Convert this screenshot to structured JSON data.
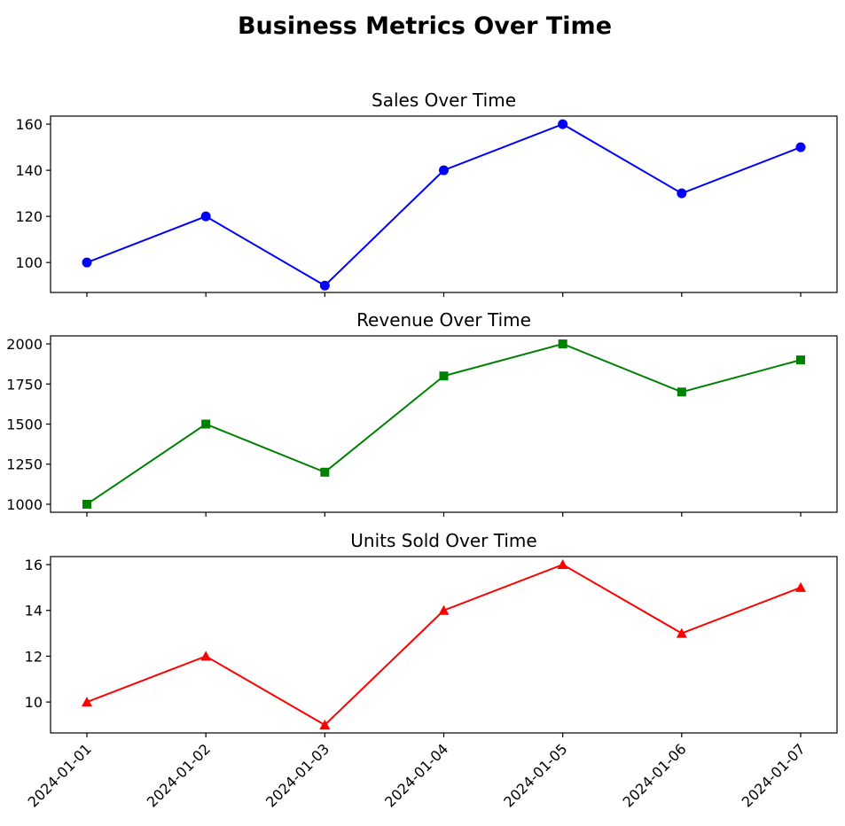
{
  "figure_title": "Business Metrics Over Time",
  "chart_data": [
    {
      "type": "line",
      "title": "Sales Over Time",
      "x": [
        "2024-01-01",
        "2024-01-02",
        "2024-01-03",
        "2024-01-04",
        "2024-01-05",
        "2024-01-06",
        "2024-01-07"
      ],
      "series": [
        {
          "values": [
            100,
            120,
            90,
            140,
            160,
            130,
            150
          ],
          "color": "#0000ff",
          "marker": "circle"
        }
      ],
      "ylim": [
        87,
        163.5
      ],
      "yticks": [
        100,
        120,
        140,
        160
      ],
      "xlabel": "",
      "ylabel": "",
      "grid": false,
      "show_xtick_labels": false
    },
    {
      "type": "line",
      "title": "Revenue Over Time",
      "x": [
        "2024-01-01",
        "2024-01-02",
        "2024-01-03",
        "2024-01-04",
        "2024-01-05",
        "2024-01-06",
        "2024-01-07"
      ],
      "series": [
        {
          "values": [
            1000,
            1500,
            1200,
            1800,
            2000,
            1700,
            1900
          ],
          "color": "#008000",
          "marker": "square"
        }
      ],
      "ylim": [
        950,
        2050
      ],
      "yticks": [
        1000,
        1250,
        1500,
        1750,
        2000
      ],
      "xlabel": "",
      "ylabel": "",
      "grid": false,
      "show_xtick_labels": false
    },
    {
      "type": "line",
      "title": "Units Sold Over Time",
      "x": [
        "2024-01-01",
        "2024-01-02",
        "2024-01-03",
        "2024-01-04",
        "2024-01-05",
        "2024-01-06",
        "2024-01-07"
      ],
      "series": [
        {
          "values": [
            10,
            12,
            9,
            14,
            16,
            13,
            15
          ],
          "color": "#ff0000",
          "marker": "triangle"
        }
      ],
      "ylim": [
        8.65,
        16.35
      ],
      "yticks": [
        10,
        12,
        14,
        16
      ],
      "xlabel": "",
      "ylabel": "",
      "grid": false,
      "show_xtick_labels": true
    }
  ]
}
